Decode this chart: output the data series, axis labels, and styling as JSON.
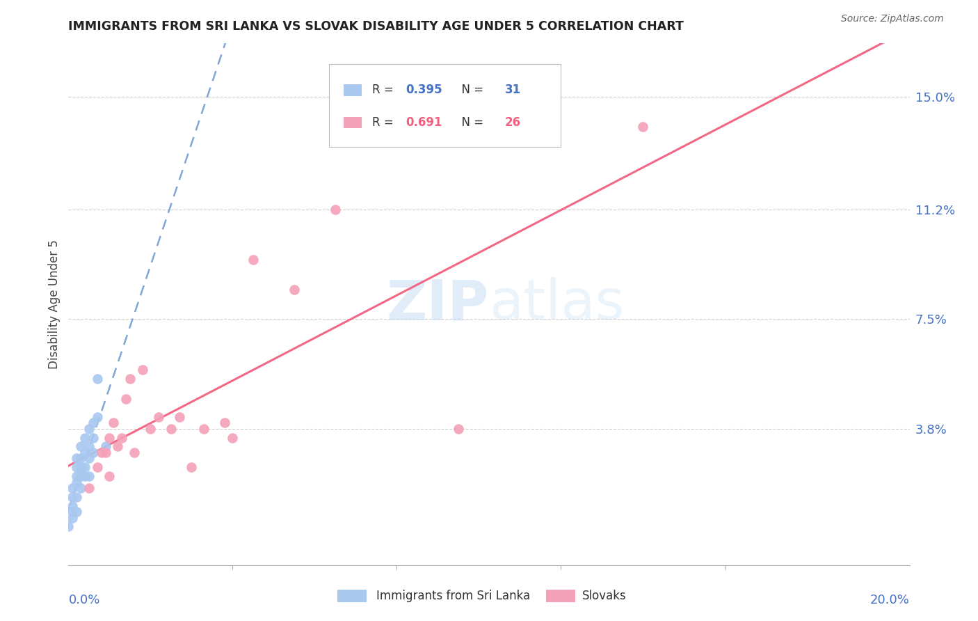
{
  "title": "IMMIGRANTS FROM SRI LANKA VS SLOVAK DISABILITY AGE UNDER 5 CORRELATION CHART",
  "source": "Source: ZipAtlas.com",
  "ylabel": "Disability Age Under 5",
  "ytick_labels": [
    "15.0%",
    "11.2%",
    "7.5%",
    "3.8%"
  ],
  "ytick_values": [
    0.15,
    0.112,
    0.075,
    0.038
  ],
  "xlim": [
    0.0,
    0.205
  ],
  "ylim": [
    -0.008,
    0.168
  ],
  "sri_lanka_R": 0.395,
  "sri_lanka_N": 31,
  "slovaks_R": 0.691,
  "slovaks_N": 26,
  "sri_lanka_color": "#a8c8f0",
  "slovaks_color": "#f4a0b8",
  "sri_lanka_line_color": "#5588cc",
  "slovaks_line_color": "#f06080",
  "watermark_zip": "ZIP",
  "watermark_atlas": "atlas",
  "sri_lanka_x": [
    0.0,
    0.001,
    0.001,
    0.001,
    0.001,
    0.001,
    0.002,
    0.002,
    0.002,
    0.002,
    0.002,
    0.002,
    0.003,
    0.003,
    0.003,
    0.003,
    0.003,
    0.004,
    0.004,
    0.004,
    0.004,
    0.005,
    0.005,
    0.005,
    0.005,
    0.006,
    0.006,
    0.006,
    0.007,
    0.007,
    0.009
  ],
  "sri_lanka_y": [
    0.005,
    0.008,
    0.01,
    0.012,
    0.015,
    0.018,
    0.01,
    0.015,
    0.02,
    0.022,
    0.025,
    0.028,
    0.018,
    0.022,
    0.025,
    0.028,
    0.032,
    0.022,
    0.025,
    0.03,
    0.035,
    0.022,
    0.028,
    0.032,
    0.038,
    0.03,
    0.035,
    0.04,
    0.055,
    0.042,
    0.032
  ],
  "slovaks_x": [
    0.005,
    0.007,
    0.008,
    0.009,
    0.01,
    0.01,
    0.011,
    0.012,
    0.013,
    0.014,
    0.015,
    0.016,
    0.018,
    0.02,
    0.022,
    0.025,
    0.027,
    0.03,
    0.033,
    0.038,
    0.04,
    0.045,
    0.055,
    0.065,
    0.095,
    0.14
  ],
  "slovaks_y": [
    0.018,
    0.025,
    0.03,
    0.03,
    0.022,
    0.035,
    0.04,
    0.032,
    0.035,
    0.048,
    0.055,
    0.03,
    0.058,
    0.038,
    0.042,
    0.038,
    0.042,
    0.025,
    0.038,
    0.04,
    0.035,
    0.095,
    0.085,
    0.112,
    0.038,
    0.14
  ],
  "legend_R1_text": "R = ",
  "legend_R1_val": "0.395",
  "legend_N1_text": "N = ",
  "legend_N1_val": "31",
  "legend_R2_text": "R = ",
  "legend_R2_val": "0.691",
  "legend_N2_text": "N = ",
  "legend_N2_val": "26",
  "legend_color1": "#4472C4",
  "legend_color2": "#f06080"
}
